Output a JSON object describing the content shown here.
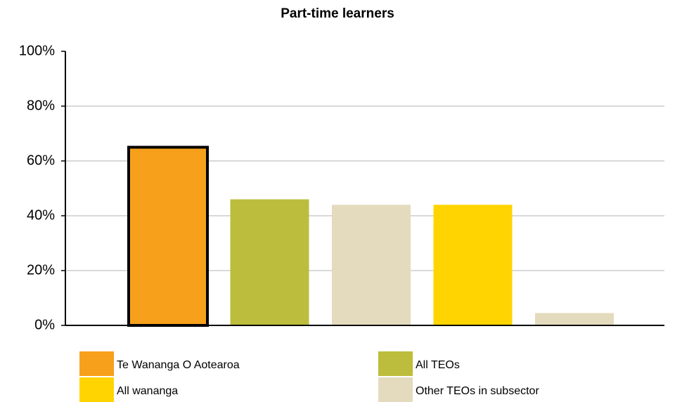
{
  "chart_data": {
    "type": "bar",
    "title": "Part-time learners",
    "categories": [
      null,
      null,
      null,
      null,
      null
    ],
    "values": [
      65,
      46,
      44,
      44,
      4.5
    ],
    "colors": [
      "#f7a01b",
      "#bcbd3c",
      "#e4dabd",
      "#ffd400",
      "#e4dabd"
    ],
    "highlight": 0,
    "ylim": [
      0,
      100
    ],
    "yticks": [
      {
        "value": 0,
        "label": "0%"
      },
      {
        "value": 20,
        "label": "20%"
      },
      {
        "value": 40,
        "label": "40%"
      },
      {
        "value": 60,
        "label": "60%"
      },
      {
        "value": 80,
        "label": "80%"
      },
      {
        "value": 100,
        "label": "100%"
      }
    ],
    "grid": true,
    "legend": [
      {
        "name": "Te Wananga O Aotearoa",
        "color": "#f7a01b"
      },
      {
        "name": "All TEOs",
        "color": "#bcbd3c"
      },
      {
        "name": "All wananga",
        "color": "#ffd400"
      },
      {
        "name": "Other TEOs in subsector",
        "color": "#e4dabd"
      }
    ]
  }
}
